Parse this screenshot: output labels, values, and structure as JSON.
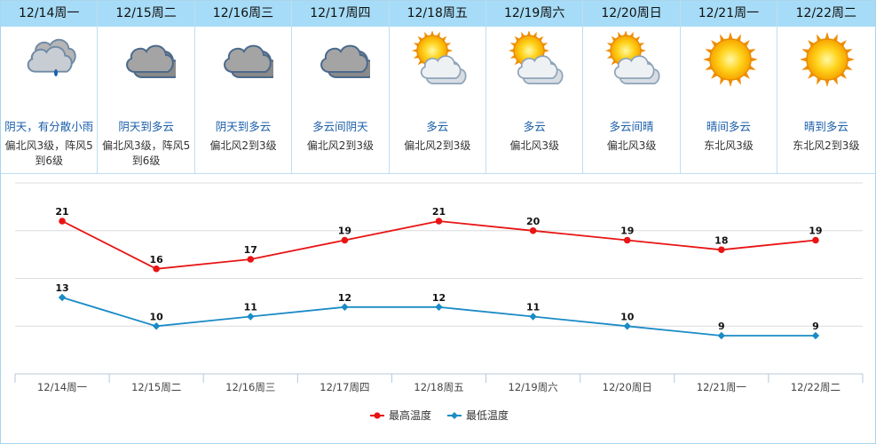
{
  "days": [
    {
      "date": "12/14周一",
      "condition": "阴天，有分散小雨",
      "wind": "偏北风3级，阵风5到6级",
      "icon": "cloud-rain-icon"
    },
    {
      "date": "12/15周二",
      "condition": "阴天到多云",
      "wind": "偏北风3级，阵风5到6级",
      "icon": "overcast-icon"
    },
    {
      "date": "12/16周三",
      "condition": "阴天到多云",
      "wind": "偏北风2到3级",
      "icon": "overcast-icon"
    },
    {
      "date": "12/17周四",
      "condition": "多云间阴天",
      "wind": "偏北风2到3级",
      "icon": "overcast-icon"
    },
    {
      "date": "12/18周五",
      "condition": "多云",
      "wind": "偏北风2到3级",
      "icon": "partly-cloudy-icon"
    },
    {
      "date": "12/19周六",
      "condition": "多云",
      "wind": "偏北风3级",
      "icon": "partly-cloudy-icon"
    },
    {
      "date": "12/20周日",
      "condition": "多云间晴",
      "wind": "偏北风3级",
      "icon": "partly-cloudy-icon"
    },
    {
      "date": "12/21周一",
      "condition": "晴间多云",
      "wind": "东北风3级",
      "icon": "sun-icon"
    },
    {
      "date": "12/22周二",
      "condition": "晴到多云",
      "wind": "东北风2到3级",
      "icon": "sun-icon"
    }
  ],
  "chart_data": {
    "type": "line",
    "categories": [
      "12/14周一",
      "12/15周二",
      "12/16周三",
      "12/17周四",
      "12/18周五",
      "12/19周六",
      "12/20周日",
      "12/21周一",
      "12/22周二"
    ],
    "series": [
      {
        "name": "最高温度",
        "values": [
          21,
          16,
          17,
          19,
          21,
          20,
          19,
          18,
          19
        ],
        "color": "#e81414"
      },
      {
        "name": "最低温度",
        "values": [
          13,
          10,
          11,
          12,
          12,
          11,
          10,
          9,
          9
        ],
        "color": "#1a8bc6"
      }
    ],
    "ylim": [
      5,
      25
    ],
    "grid": true,
    "legend": "bottom-center",
    "data_labels": true
  }
}
